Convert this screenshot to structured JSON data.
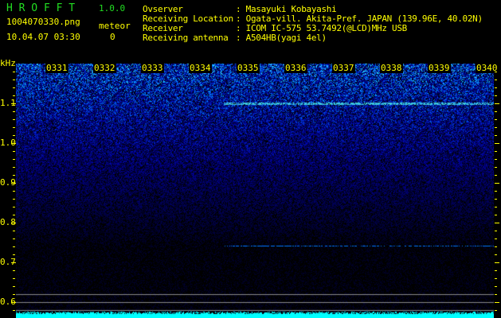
{
  "header": {
    "app_name": "H R O F F T",
    "version": "1.0.0",
    "filename": "1004070330.png",
    "datetime": "10.04.07 03:30",
    "meteor_label": "meteor",
    "meteor_count": "0",
    "info": [
      {
        "label": "Ovserver",
        "value": ": Masayuki Kobayashi"
      },
      {
        "label": "Receiving Location",
        "value": ": Ogata-vill. Akita-Pref. JAPAN (139.96E, 40.02N)"
      },
      {
        "label": "Receiver",
        "value": ": ICOM IC-575 53.7492(@LCD)MHz USB"
      },
      {
        "label": "Receiving antenna",
        "value": ": A504HB(yagi 4el)"
      }
    ]
  },
  "spectrogram": {
    "unit": "kHz",
    "y_labels": [
      "1.1",
      "1.0",
      "0.9",
      "0.8",
      "0.7",
      "0.6"
    ],
    "time_labels": [
      "0331",
      "0332",
      "0333",
      "0334",
      "0335",
      "0336",
      "0337",
      "0338",
      "0339",
      "0340"
    ],
    "colors": {
      "text": "#ffff00",
      "title": "#22dd22",
      "noise": "#0000ff",
      "signal": "#00ffff"
    }
  }
}
